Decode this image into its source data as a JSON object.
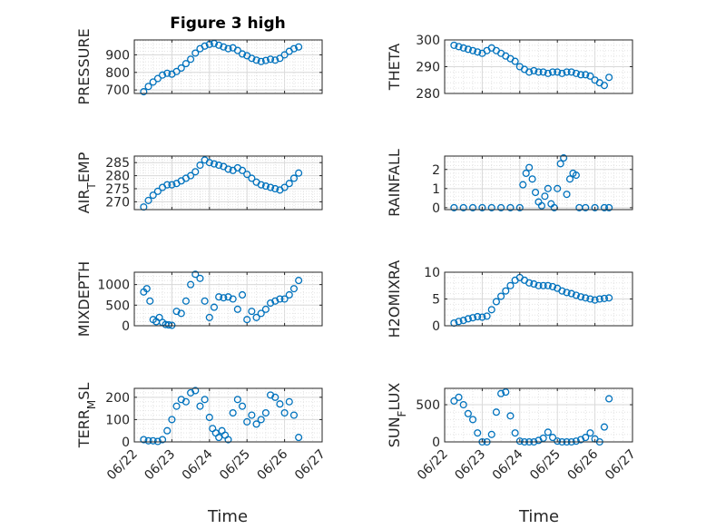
{
  "title": "Figure 3 high",
  "xlabel": "Time",
  "x_ticks": [
    "06/22",
    "06/23",
    "06/24",
    "06/25",
    "06/26",
    "06/27"
  ],
  "x_range": [
    "06/22",
    "06/27"
  ],
  "marker_color": "#0072BD",
  "chart_data": [
    {
      "type": "scatter",
      "ylabel": "PRESSURE",
      "ylabel_sub": null,
      "ylim": [
        680,
        985
      ],
      "yticks": [
        700,
        800,
        900
      ],
      "grid": true,
      "x": [
        "06/22 06:00",
        "06/22 09:00",
        "06/22 12:00",
        "06/22 15:00",
        "06/22 18:00",
        "06/22 21:00",
        "06/23 00:00",
        "06/23 03:00",
        "06/23 06:00",
        "06/23 09:00",
        "06/23 12:00",
        "06/23 15:00",
        "06/23 18:00",
        "06/23 21:00",
        "06/24 00:00",
        "06/24 03:00",
        "06/24 06:00",
        "06/24 09:00",
        "06/24 12:00",
        "06/24 15:00",
        "06/24 18:00",
        "06/24 21:00",
        "06/25 00:00",
        "06/25 03:00",
        "06/25 06:00",
        "06/25 09:00",
        "06/25 12:00",
        "06/25 15:00",
        "06/25 18:00",
        "06/25 21:00",
        "06/26 00:00",
        "06/26 03:00",
        "06/26 06:00",
        "06/26 09:00"
      ],
      "y": [
        690,
        720,
        745,
        765,
        785,
        795,
        790,
        805,
        825,
        850,
        875,
        910,
        935,
        950,
        960,
        965,
        955,
        945,
        935,
        940,
        925,
        905,
        895,
        880,
        870,
        862,
        868,
        875,
        870,
        880,
        900,
        920,
        935,
        945
      ]
    },
    {
      "type": "scatter",
      "ylabel": "THETA",
      "ylabel_sub": null,
      "ylim": [
        280,
        300
      ],
      "yticks": [
        280,
        290,
        300
      ],
      "grid": true,
      "x": [
        "06/22 06:00",
        "06/22 09:00",
        "06/22 12:00",
        "06/22 15:00",
        "06/22 18:00",
        "06/22 21:00",
        "06/23 00:00",
        "06/23 03:00",
        "06/23 06:00",
        "06/23 09:00",
        "06/23 12:00",
        "06/23 15:00",
        "06/23 18:00",
        "06/23 21:00",
        "06/24 00:00",
        "06/24 03:00",
        "06/24 06:00",
        "06/24 09:00",
        "06/24 12:00",
        "06/24 15:00",
        "06/24 18:00",
        "06/24 21:00",
        "06/25 00:00",
        "06/25 03:00",
        "06/25 06:00",
        "06/25 09:00",
        "06/25 12:00",
        "06/25 15:00",
        "06/25 18:00",
        "06/25 21:00",
        "06/26 00:00",
        "06/26 03:00",
        "06/26 06:00",
        "06/26 09:00"
      ],
      "y": [
        298,
        297.5,
        297,
        296.5,
        296,
        295.5,
        295,
        296,
        297,
        296,
        295,
        294,
        293,
        292,
        290,
        289,
        288,
        288.5,
        288,
        288,
        287.5,
        288,
        288,
        287.5,
        288,
        288,
        287.5,
        287,
        287,
        286.5,
        285,
        284,
        283,
        286
      ]
    },
    {
      "type": "scatter",
      "ylabel": "AIR_TEMP",
      "ylabel_sub": "T",
      "ylim": [
        267,
        287.5
      ],
      "yticks": [
        270,
        275,
        280,
        285
      ],
      "grid": true,
      "x": [
        "06/22 06:00",
        "06/22 09:00",
        "06/22 12:00",
        "06/22 15:00",
        "06/22 18:00",
        "06/22 21:00",
        "06/23 00:00",
        "06/23 03:00",
        "06/23 06:00",
        "06/23 09:00",
        "06/23 12:00",
        "06/23 15:00",
        "06/23 18:00",
        "06/23 21:00",
        "06/24 00:00",
        "06/24 03:00",
        "06/24 06:00",
        "06/24 09:00",
        "06/24 12:00",
        "06/24 15:00",
        "06/24 18:00",
        "06/24 21:00",
        "06/25 00:00",
        "06/25 03:00",
        "06/25 06:00",
        "06/25 09:00",
        "06/25 12:00",
        "06/25 15:00",
        "06/25 18:00",
        "06/25 21:00",
        "06/26 00:00",
        "06/26 03:00",
        "06/26 06:00",
        "06/26 09:00"
      ],
      "y": [
        268,
        270.5,
        272.5,
        274,
        275.5,
        276.5,
        276.5,
        277,
        278,
        279,
        280,
        281.5,
        284,
        286,
        285,
        284.5,
        284,
        283.5,
        282.5,
        282,
        283,
        282,
        280.5,
        279,
        277.5,
        276.5,
        276,
        275.5,
        275,
        274.5,
        275.5,
        277,
        279,
        281
      ]
    },
    {
      "type": "scatter",
      "ylabel": "RAINFALL",
      "ylabel_sub": null,
      "ylim": [
        -0.1,
        2.7
      ],
      "yticks": [
        0,
        1,
        2
      ],
      "grid": true,
      "x": [
        "06/22 06:00",
        "06/22 12:00",
        "06/22 18:00",
        "06/23 00:00",
        "06/23 06:00",
        "06/23 12:00",
        "06/23 18:00",
        "06/24 00:00",
        "06/24 02:00",
        "06/24 04:00",
        "06/24 06:00",
        "06/24 08:00",
        "06/24 10:00",
        "06/24 12:00",
        "06/24 14:00",
        "06/24 16:00",
        "06/24 18:00",
        "06/24 20:00",
        "06/24 22:00",
        "06/25 00:00",
        "06/25 02:00",
        "06/25 04:00",
        "06/25 06:00",
        "06/25 08:00",
        "06/25 10:00",
        "06/25 12:00",
        "06/25 14:00",
        "06/25 18:00",
        "06/26 00:00",
        "06/26 06:00",
        "06/26 09:00"
      ],
      "y": [
        0,
        0,
        0,
        0,
        0,
        0,
        0,
        0,
        1.2,
        1.8,
        2.1,
        1.5,
        0.8,
        0.3,
        0.1,
        0.6,
        1.0,
        0.2,
        0,
        1.0,
        2.3,
        2.6,
        0.7,
        1.5,
        1.8,
        1.7,
        0,
        0,
        0,
        0,
        0
      ]
    },
    {
      "type": "scatter",
      "ylabel": "MIXDEPTH",
      "ylabel_sub": null,
      "ylim": [
        0,
        1300
      ],
      "yticks": [
        0,
        500,
        1000
      ],
      "grid": true,
      "x": [
        "06/22 06:00",
        "06/22 08:00",
        "06/22 10:00",
        "06/22 12:00",
        "06/22 14:00",
        "06/22 16:00",
        "06/22 18:00",
        "06/22 20:00",
        "06/22 22:00",
        "06/23 00:00",
        "06/23 03:00",
        "06/23 06:00",
        "06/23 09:00",
        "06/23 12:00",
        "06/23 15:00",
        "06/23 18:00",
        "06/23 21:00",
        "06/24 00:00",
        "06/24 03:00",
        "06/24 06:00",
        "06/24 09:00",
        "06/24 12:00",
        "06/24 15:00",
        "06/24 18:00",
        "06/24 21:00",
        "06/25 00:00",
        "06/25 03:00",
        "06/25 06:00",
        "06/25 09:00",
        "06/25 12:00",
        "06/25 15:00",
        "06/25 18:00",
        "06/25 21:00",
        "06/26 00:00",
        "06/26 03:00",
        "06/26 06:00",
        "06/26 09:00"
      ],
      "y": [
        820,
        900,
        600,
        150,
        100,
        200,
        80,
        30,
        20,
        10,
        350,
        300,
        600,
        1000,
        1250,
        1150,
        600,
        200,
        450,
        700,
        680,
        700,
        650,
        400,
        750,
        150,
        350,
        200,
        300,
        400,
        550,
        600,
        650,
        650,
        750,
        900,
        1100
      ]
    },
    {
      "type": "scatter",
      "ylabel": "H2OMIXRA",
      "ylabel_sub": null,
      "ylim": [
        0,
        10
      ],
      "yticks": [
        0,
        5,
        10
      ],
      "grid": true,
      "x": [
        "06/22 06:00",
        "06/22 09:00",
        "06/22 12:00",
        "06/22 15:00",
        "06/22 18:00",
        "06/22 21:00",
        "06/23 00:00",
        "06/23 03:00",
        "06/23 06:00",
        "06/23 09:00",
        "06/23 12:00",
        "06/23 15:00",
        "06/23 18:00",
        "06/23 21:00",
        "06/24 00:00",
        "06/24 03:00",
        "06/24 06:00",
        "06/24 09:00",
        "06/24 12:00",
        "06/24 15:00",
        "06/24 18:00",
        "06/24 21:00",
        "06/25 00:00",
        "06/25 03:00",
        "06/25 06:00",
        "06/25 09:00",
        "06/25 12:00",
        "06/25 15:00",
        "06/25 18:00",
        "06/25 21:00",
        "06/26 00:00",
        "06/26 03:00",
        "06/26 06:00",
        "06/26 09:00"
      ],
      "y": [
        0.5,
        0.8,
        1.0,
        1.3,
        1.5,
        1.7,
        1.6,
        1.8,
        3.0,
        4.5,
        5.5,
        6.5,
        7.5,
        8.5,
        9.0,
        8.5,
        8.0,
        7.8,
        7.5,
        7.5,
        7.5,
        7.3,
        7.0,
        6.5,
        6.2,
        6.0,
        5.7,
        5.4,
        5.2,
        5.0,
        4.8,
        5.0,
        5.1,
        5.2
      ]
    },
    {
      "type": "scatter",
      "ylabel": "TERR_MSL",
      "ylabel_sub": "M",
      "ylim": [
        0,
        240
      ],
      "yticks": [
        0,
        100,
        200
      ],
      "grid": true,
      "x": [
        "06/22 06:00",
        "06/22 09:00",
        "06/22 12:00",
        "06/22 15:00",
        "06/22 18:00",
        "06/22 21:00",
        "06/23 00:00",
        "06/23 03:00",
        "06/23 06:00",
        "06/23 09:00",
        "06/23 12:00",
        "06/23 15:00",
        "06/23 18:00",
        "06/23 21:00",
        "06/24 00:00",
        "06/24 02:00",
        "06/24 04:00",
        "06/24 06:00",
        "06/24 08:00",
        "06/24 10:00",
        "06/24 12:00",
        "06/24 15:00",
        "06/24 18:00",
        "06/24 21:00",
        "06/25 00:00",
        "06/25 03:00",
        "06/25 06:00",
        "06/25 09:00",
        "06/25 12:00",
        "06/25 15:00",
        "06/25 18:00",
        "06/25 21:00",
        "06/26 00:00",
        "06/26 03:00",
        "06/26 06:00",
        "06/26 09:00"
      ],
      "y": [
        10,
        5,
        5,
        2,
        10,
        50,
        100,
        160,
        190,
        180,
        220,
        230,
        160,
        190,
        110,
        60,
        40,
        20,
        50,
        30,
        10,
        130,
        190,
        160,
        90,
        120,
        80,
        100,
        130,
        210,
        200,
        170,
        130,
        180,
        120,
        20
      ]
    },
    {
      "type": "scatter",
      "ylabel": "SUN_FLUX",
      "ylabel_sub": "F",
      "ylim": [
        0,
        720
      ],
      "yticks": [
        0,
        500
      ],
      "grid": true,
      "x": [
        "06/22 06:00",
        "06/22 09:00",
        "06/22 12:00",
        "06/22 15:00",
        "06/22 18:00",
        "06/22 21:00",
        "06/23 00:00",
        "06/23 03:00",
        "06/23 06:00",
        "06/23 09:00",
        "06/23 12:00",
        "06/23 15:00",
        "06/23 18:00",
        "06/23 21:00",
        "06/24 00:00",
        "06/24 03:00",
        "06/24 06:00",
        "06/24 09:00",
        "06/24 12:00",
        "06/24 15:00",
        "06/24 18:00",
        "06/24 21:00",
        "06/25 00:00",
        "06/25 03:00",
        "06/25 06:00",
        "06/25 09:00",
        "06/25 12:00",
        "06/25 15:00",
        "06/25 18:00",
        "06/25 21:00",
        "06/26 00:00",
        "06/26 03:00",
        "06/26 06:00",
        "06/26 09:00"
      ],
      "y": [
        550,
        600,
        500,
        380,
        300,
        120,
        0,
        0,
        100,
        400,
        650,
        670,
        350,
        120,
        10,
        0,
        0,
        0,
        20,
        50,
        130,
        60,
        10,
        0,
        0,
        0,
        10,
        30,
        60,
        120,
        40,
        0,
        200,
        580
      ]
    }
  ]
}
